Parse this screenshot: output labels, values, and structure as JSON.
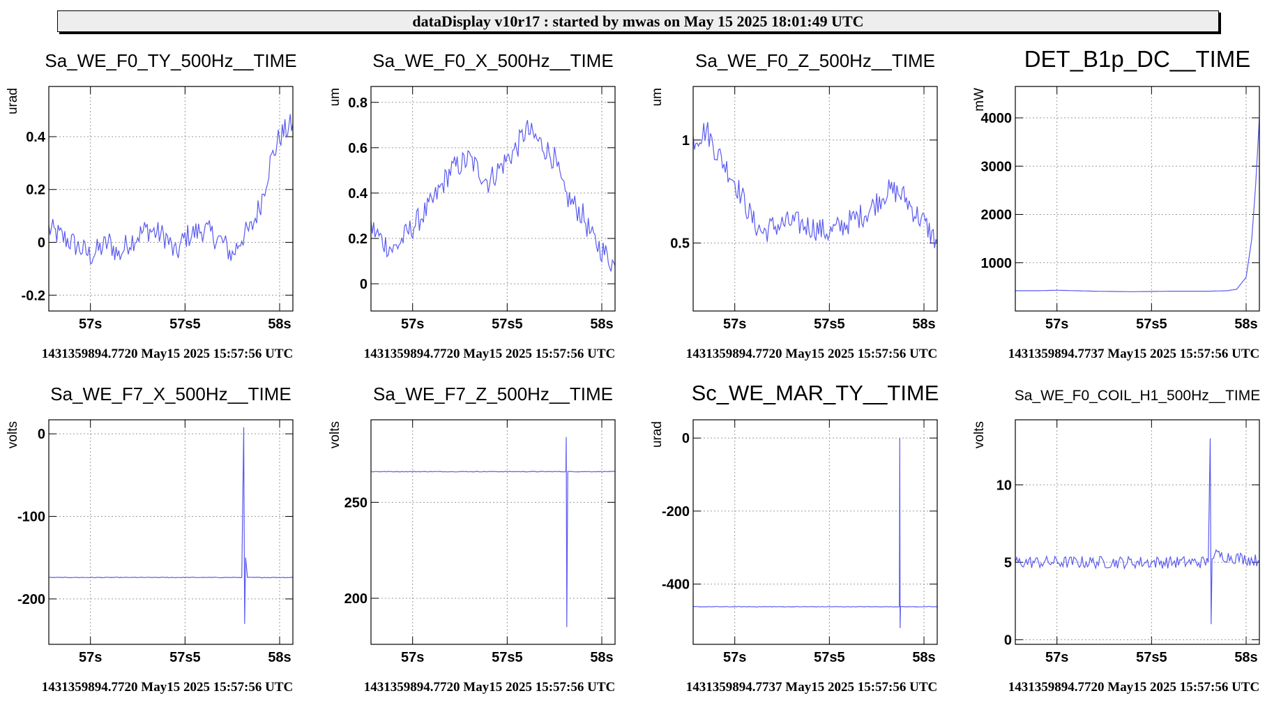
{
  "header": {
    "title": "dataDisplay v10r17 : started by mwas on May 15 2025 18:01:49 UTC"
  },
  "colors": {
    "trace": "#5a5af0",
    "grid": "#9a9a9a",
    "frame": "#000000"
  },
  "plots": [
    {
      "title": "Sa_WE_F0_TY_500Hz__TIME",
      "ylabel": "urad",
      "footer": "1431359894.7720 May15 2025 15:57:56 UTC"
    },
    {
      "title": "Sa_WE_F0_X_500Hz__TIME",
      "ylabel": "um",
      "footer": "1431359894.7720 May15 2025 15:57:56 UTC"
    },
    {
      "title": "Sa_WE_F0_Z_500Hz__TIME",
      "ylabel": "um",
      "footer": "1431359894.7720 May15 2025 15:57:56 UTC"
    },
    {
      "title": "DET_B1p_DC__TIME",
      "ylabel": "mW",
      "footer": "1431359894.7737 May15 2025 15:57:56 UTC"
    },
    {
      "title": "Sa_WE_F7_X_500Hz__TIME",
      "ylabel": "volts",
      "footer": "1431359894.7720 May15 2025 15:57:56 UTC"
    },
    {
      "title": "Sa_WE_F7_Z_500Hz__TIME",
      "ylabel": "volts",
      "footer": "1431359894.7720 May15 2025 15:57:56 UTC"
    },
    {
      "title": "Sc_WE_MAR_TY__TIME",
      "ylabel": "urad",
      "footer": "1431359894.7737 May15 2025 15:57:56 UTC"
    },
    {
      "title": "Sa_WE_F0_COIL_H1_500Hz__TIME",
      "ylabel": "volts",
      "footer": "1431359894.7720 May15 2025 15:57:56 UTC"
    }
  ],
  "chart_data": [
    {
      "type": "line",
      "title": "Sa_WE_F0_TY_500Hz__TIME",
      "xlabel": "",
      "ylabel": "urad",
      "xlim": [
        56.78,
        58.07
      ],
      "ylim": [
        -0.26,
        0.59
      ],
      "grid": true,
      "x_ticks": [
        57,
        57.5,
        58
      ],
      "x_tick_labels": [
        "57s",
        "57s5",
        "58s"
      ],
      "y_ticks": [
        -0.2,
        0,
        0.2,
        0.4
      ],
      "y_tick_labels": [
        "-0.2",
        "0",
        "0.2",
        "0.4"
      ],
      "series": [
        {
          "x": [
            56.78,
            56.85,
            56.9,
            57.0,
            57.1,
            57.15,
            57.2,
            57.3,
            57.4,
            57.45,
            57.5,
            57.6,
            57.7,
            57.75,
            57.8,
            57.85,
            57.9,
            57.95,
            58.0,
            58.07
          ],
          "y": [
            0.05,
            0.02,
            0.0,
            -0.05,
            0.0,
            -0.05,
            0.0,
            0.05,
            0.02,
            -0.05,
            0.02,
            0.05,
            0.0,
            -0.05,
            0.02,
            0.05,
            0.15,
            0.3,
            0.4,
            0.45
          ]
        }
      ]
    },
    {
      "type": "line",
      "title": "Sa_WE_F0_X_500Hz__TIME",
      "xlabel": "",
      "ylabel": "um",
      "xlim": [
        56.78,
        58.07
      ],
      "ylim": [
        -0.12,
        0.87
      ],
      "grid": true,
      "x_ticks": [
        57,
        57.5,
        58
      ],
      "x_tick_labels": [
        "57s",
        "57s5",
        "58s"
      ],
      "y_ticks": [
        0,
        0.2,
        0.4,
        0.6,
        0.8
      ],
      "y_tick_labels": [
        "0",
        "0.2",
        "0.4",
        "0.6",
        "0.8"
      ],
      "series": [
        {
          "x": [
            56.78,
            56.85,
            56.9,
            57.0,
            57.1,
            57.2,
            57.3,
            57.4,
            57.45,
            57.5,
            57.55,
            57.6,
            57.7,
            57.75,
            57.8,
            57.85,
            57.9,
            57.95,
            58.0,
            58.07
          ],
          "y": [
            0.25,
            0.18,
            0.15,
            0.25,
            0.35,
            0.5,
            0.55,
            0.45,
            0.5,
            0.55,
            0.6,
            0.68,
            0.6,
            0.55,
            0.4,
            0.35,
            0.3,
            0.2,
            0.15,
            0.08
          ]
        }
      ]
    },
    {
      "type": "line",
      "title": "Sa_WE_F0_Z_500Hz__TIME",
      "xlabel": "",
      "ylabel": "um",
      "xlim": [
        56.78,
        58.07
      ],
      "ylim": [
        0.17,
        1.26
      ],
      "grid": true,
      "x_ticks": [
        57,
        57.5,
        58
      ],
      "x_tick_labels": [
        "57s",
        "57s5",
        "58s"
      ],
      "y_ticks": [
        0.5,
        1
      ],
      "y_tick_labels": [
        "0.5",
        "1"
      ],
      "series": [
        {
          "x": [
            56.78,
            56.85,
            56.9,
            57.0,
            57.1,
            57.15,
            57.2,
            57.3,
            57.4,
            57.5,
            57.6,
            57.7,
            57.75,
            57.8,
            57.85,
            57.9,
            57.95,
            58.0,
            58.07
          ],
          "y": [
            1.0,
            1.05,
            0.95,
            0.8,
            0.6,
            0.55,
            0.58,
            0.6,
            0.58,
            0.55,
            0.6,
            0.65,
            0.7,
            0.75,
            0.75,
            0.72,
            0.65,
            0.6,
            0.5
          ]
        }
      ]
    },
    {
      "type": "line",
      "title": "DET_B1p_DC__TIME",
      "xlabel": "",
      "ylabel": "mW",
      "xlim": [
        56.78,
        58.07
      ],
      "ylim": [
        0,
        4650
      ],
      "grid": true,
      "x_ticks": [
        57,
        57.5,
        58
      ],
      "x_tick_labels": [
        "57s",
        "57s5",
        "58s"
      ],
      "y_ticks": [
        1000,
        2000,
        3000,
        4000
      ],
      "y_tick_labels": [
        "1000",
        "2000",
        "3000",
        "4000"
      ],
      "series": [
        {
          "x": [
            56.78,
            56.9,
            57.0,
            57.2,
            57.4,
            57.6,
            57.8,
            57.9,
            57.95,
            58.0,
            58.03,
            58.05,
            58.07
          ],
          "y": [
            420,
            420,
            430,
            410,
            400,
            410,
            410,
            420,
            450,
            700,
            1500,
            2600,
            4000
          ]
        }
      ]
    },
    {
      "type": "line",
      "title": "Sa_WE_F7_X_500Hz__TIME",
      "xlabel": "",
      "ylabel": "volts",
      "xlim": [
        56.78,
        58.07
      ],
      "ylim": [
        -255,
        17
      ],
      "grid": true,
      "x_ticks": [
        57,
        57.5,
        58
      ],
      "x_tick_labels": [
        "57s",
        "57s5",
        "58s"
      ],
      "y_ticks": [
        -200,
        -100,
        0
      ],
      "y_tick_labels": [
        "-200",
        "-100",
        "0"
      ],
      "series": [
        {
          "x": [
            56.78,
            57.5,
            57.8,
            57.81,
            57.815,
            57.82,
            57.83,
            58.07
          ],
          "y": [
            -174,
            -174,
            -174,
            8,
            -230,
            -150,
            -174,
            -174
          ]
        }
      ]
    },
    {
      "type": "line",
      "title": "Sa_WE_F7_Z_500Hz__TIME",
      "xlabel": "",
      "ylabel": "volts",
      "xlim": [
        56.78,
        58.07
      ],
      "ylim": [
        176,
        293
      ],
      "grid": true,
      "x_ticks": [
        57,
        57.5,
        58
      ],
      "x_tick_labels": [
        "57s",
        "57s5",
        "58s"
      ],
      "y_ticks": [
        200,
        250
      ],
      "y_tick_labels": [
        "200",
        "250"
      ],
      "series": [
        {
          "x": [
            56.78,
            57.5,
            57.81,
            57.812,
            57.815,
            57.82,
            58.07
          ],
          "y": [
            266,
            266,
            266,
            284,
            185,
            266,
            266
          ]
        }
      ]
    },
    {
      "type": "line",
      "title": "Sc_WE_MAR_TY__TIME",
      "xlabel": "",
      "ylabel": "urad",
      "xlim": [
        56.78,
        58.07
      ],
      "ylim": [
        -565,
        50
      ],
      "grid": true,
      "x_ticks": [
        57,
        57.5,
        58
      ],
      "x_tick_labels": [
        "57s",
        "57s5",
        "58s"
      ],
      "y_ticks": [
        -400,
        -200,
        0
      ],
      "y_tick_labels": [
        "-400",
        "-200",
        "0"
      ],
      "series": [
        {
          "x": [
            56.78,
            57.87,
            57.872,
            57.874,
            57.876,
            58.07
          ],
          "y": [
            -462,
            -462,
            0,
            -520,
            -462,
            -462
          ]
        }
      ]
    },
    {
      "type": "line",
      "title": "Sa_WE_F0_COIL_H1_500Hz__TIME",
      "xlabel": "",
      "ylabel": "volts",
      "xlim": [
        56.78,
        58.07
      ],
      "ylim": [
        -0.3,
        14.2
      ],
      "grid": true,
      "x_ticks": [
        57,
        57.5,
        58
      ],
      "x_tick_labels": [
        "57s",
        "57s5",
        "58s"
      ],
      "y_ticks": [
        0,
        5,
        10
      ],
      "y_tick_labels": [
        "0",
        "5",
        "10"
      ],
      "series": [
        {
          "x": [
            56.78,
            57.5,
            57.8,
            57.81,
            57.815,
            57.82,
            58.07
          ],
          "y": [
            5.0,
            5.0,
            5.0,
            13.0,
            1.0,
            5.5,
            5.1
          ]
        }
      ]
    }
  ]
}
